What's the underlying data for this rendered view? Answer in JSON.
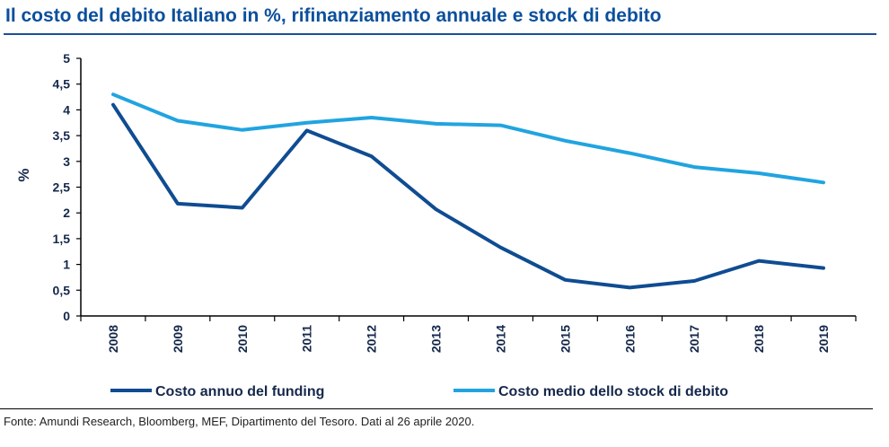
{
  "chart_data": {
    "type": "line",
    "title": "Il costo del debito Italiano in %, rifinanziamento annuale e stock di debito",
    "ylabel": "%",
    "xlabel": "",
    "x": [
      "2008",
      "2009",
      "2010",
      "2011",
      "2012",
      "2013",
      "2014",
      "2015",
      "2016",
      "2017",
      "2018",
      "2019"
    ],
    "ylim": [
      0,
      5
    ],
    "yticks": [
      "0",
      "0,5",
      "1",
      "1,5",
      "2",
      "2,5",
      "3",
      "3,5",
      "4",
      "4,5",
      "5"
    ],
    "grid": false,
    "legend_position": "bottom",
    "series": [
      {
        "name": "Costo annuo del funding",
        "color": "#0f4c92",
        "values": [
          4.1,
          2.18,
          2.1,
          3.6,
          3.1,
          2.07,
          1.33,
          0.7,
          0.55,
          0.68,
          1.07,
          0.93
        ]
      },
      {
        "name": "Costo medio dello stock di debito",
        "color": "#21a4e0",
        "values": [
          4.3,
          3.79,
          3.61,
          3.75,
          3.85,
          3.73,
          3.7,
          3.4,
          3.16,
          2.89,
          2.77,
          2.59
        ]
      }
    ]
  },
  "source": "Fonte: Amundi Research, Bloomberg, MEF, Dipartimento del Tesoro. Dati al 26 aprile 2020."
}
